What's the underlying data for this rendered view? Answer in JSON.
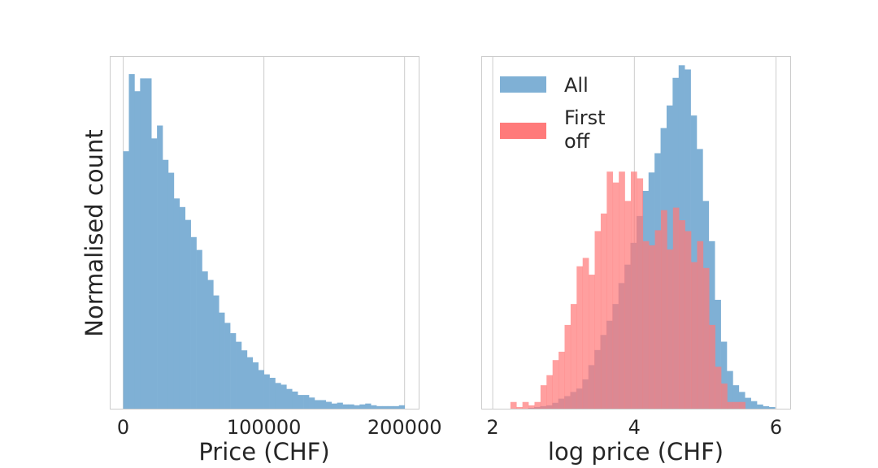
{
  "chart_data": [
    {
      "type": "bar",
      "subtype": "histogram",
      "ylabel": "Normalised count",
      "xlabel": "Price (CHF)",
      "xlim": [
        -9000,
        210000
      ],
      "x_ticks": [
        0,
        100000,
        200000
      ],
      "x_tick_labels": [
        "0",
        "100000",
        "200000"
      ],
      "y_ticks": [],
      "grid": "vertical",
      "series": [
        {
          "color": "#7fb0d5",
          "bin_start": 0,
          "bin_width": 4000,
          "counts": [
            300,
            390,
            370,
            385,
            385,
            315,
            330,
            290,
            275,
            245,
            235,
            220,
            200,
            185,
            160,
            150,
            132,
            112,
            100,
            88,
            78,
            68,
            60,
            54,
            45,
            40,
            36,
            30,
            28,
            23,
            20,
            16,
            16,
            13,
            10,
            10,
            8,
            6,
            7,
            5,
            5,
            4,
            5,
            6,
            4,
            3,
            3,
            3,
            3,
            4
          ]
        }
      ]
    },
    {
      "type": "bar",
      "subtype": "histogram",
      "xlabel": "log price (CHF)",
      "xlim": [
        1.85,
        6.2
      ],
      "x_ticks": [
        2,
        4,
        6
      ],
      "x_tick_labels": [
        "2",
        "4",
        "6"
      ],
      "y_ticks": [],
      "grid": "vertical",
      "legend": "top-left",
      "series": [
        {
          "name": "All",
          "color": "#7fb0d5",
          "bin_start": 2.5,
          "bin_width": 0.085,
          "counts": [
            1,
            2,
            3,
            4,
            7,
            12,
            15,
            20,
            24,
            35,
            52,
            70,
            88,
            105,
            125,
            150,
            172,
            198,
            230,
            260,
            282,
            305,
            335,
            362,
            395,
            410,
            405,
            350,
            310,
            248,
            200,
            130,
            80,
            45,
            28,
            20,
            13,
            9,
            5,
            3,
            2
          ]
        }
      ],
      "series_red": [
        {
          "name": "First\noff",
          "color": "#ff7a7a",
          "bin_start": 2.25,
          "bin_width": 0.085,
          "counts": [
            8,
            2,
            8,
            4,
            8,
            28,
            40,
            58,
            68,
            100,
            125,
            170,
            180,
            160,
            212,
            233,
            283,
            270,
            283,
            248,
            283,
            275,
            200,
            195,
            213,
            237,
            190,
            240,
            225,
            212,
            175,
            200,
            168,
            100,
            50,
            30,
            8,
            8,
            8
          ]
        }
      ]
    }
  ]
}
